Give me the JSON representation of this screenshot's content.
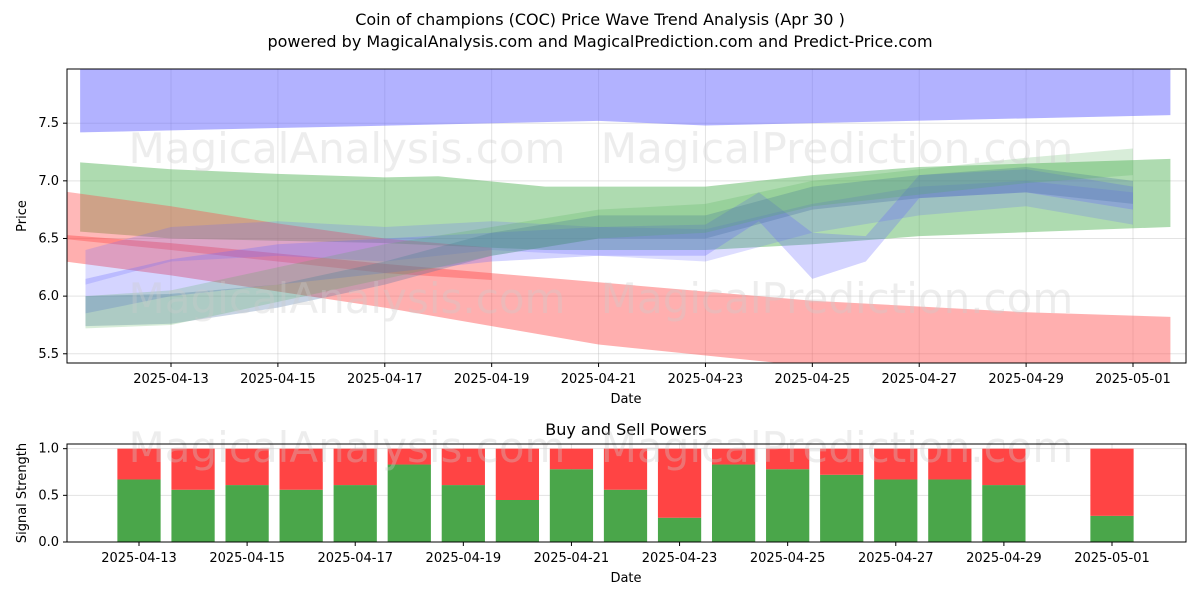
{
  "page": {
    "title": "Coin of champions (COC) Price Wave Trend Analysis (Apr 30 )",
    "subtitle": "powered by MagicalAnalysis.com and MagicalPrediction.com and Predict-Price.com",
    "watermarks": [
      "MagicalAnalysis.com",
      "MagicalPrediction.com"
    ]
  },
  "colors": {
    "blue": "#6666ff",
    "green": "#4caf50",
    "red": "#ff4d4d",
    "buy": "#4aa64a",
    "sell": "#ff4444",
    "steel": "#4a6fa5"
  },
  "chart_data": [
    {
      "type": "area",
      "title": "",
      "xlabel": "Date",
      "ylabel": "Price",
      "ylim": [
        5.42,
        7.97
      ],
      "xlim": [
        "2025-04-10",
        "2025-05-02"
      ],
      "grid": true,
      "x_ticks": [
        "2025-04-13",
        "2025-04-15",
        "2025-04-17",
        "2025-04-19",
        "2025-04-21",
        "2025-04-23",
        "2025-04-25",
        "2025-04-27",
        "2025-04-29",
        "2025-05-01"
      ],
      "y_ticks": [
        5.5,
        6.0,
        6.5,
        7.0,
        7.5
      ],
      "bands": [
        {
          "color": "blue",
          "opacity": 0.5,
          "x": [
            "2025-04-11.3",
            "2025-04-21",
            "2025-04-23",
            "2025-05-01.7"
          ],
          "upper": [
            7.97,
            7.97,
            7.97,
            7.97
          ],
          "lower": [
            7.42,
            7.52,
            7.48,
            7.57
          ]
        },
        {
          "color": "green",
          "opacity": 0.45,
          "x": [
            "2025-04-11.3",
            "2025-04-13",
            "2025-04-15",
            "2025-04-17",
            "2025-04-18",
            "2025-04-20",
            "2025-04-23",
            "2025-04-25",
            "2025-04-27",
            "2025-05-01.7"
          ],
          "upper": [
            7.16,
            7.1,
            7.06,
            7.03,
            7.04,
            6.95,
            6.95,
            7.05,
            7.12,
            7.19
          ],
          "lower": [
            6.56,
            6.5,
            6.48,
            6.46,
            6.44,
            6.4,
            6.4,
            6.45,
            6.52,
            6.6
          ]
        },
        {
          "color": "red",
          "opacity": 0.45,
          "x": [
            "2025-04-10.2",
            "2025-04-13",
            "2025-04-17",
            "2025-04-21",
            "2025-04-25",
            "2025-04-29",
            "2025-05-01.7"
          ],
          "upper": [
            6.56,
            6.46,
            6.28,
            6.12,
            5.96,
            5.86,
            5.82
          ],
          "lower": [
            6.35,
            6.18,
            5.9,
            5.58,
            5.39,
            5.33,
            5.32
          ]
        },
        {
          "color": "red",
          "opacity": 0.4,
          "x": [
            "2025-04-10.5",
            "2025-04-13",
            "2025-04-15",
            "2025-04-17",
            "2025-04-19"
          ],
          "upper": [
            6.94,
            6.78,
            6.63,
            6.5,
            6.42
          ],
          "lower": [
            6.52,
            6.4,
            6.3,
            6.2,
            6.14
          ]
        },
        {
          "color": "blue",
          "opacity": 0.28,
          "x": [
            "2025-04-11.4",
            "2025-04-13",
            "2025-04-15",
            "2025-04-17",
            "2025-04-19",
            "2025-04-21",
            "2025-04-23",
            "2025-04-24",
            "2025-04-25",
            "2025-04-26",
            "2025-04-27",
            "2025-04-29",
            "2025-05-01"
          ],
          "upper": [
            6.15,
            6.32,
            6.45,
            6.5,
            6.55,
            6.6,
            6.62,
            6.9,
            6.55,
            6.52,
            7.05,
            7.1,
            6.95
          ],
          "lower": [
            5.85,
            6.0,
            6.1,
            6.2,
            6.3,
            6.35,
            6.35,
            6.65,
            6.15,
            6.3,
            6.85,
            6.9,
            6.75
          ]
        },
        {
          "color": "blue",
          "opacity": 0.22,
          "x": [
            "2025-04-11.4",
            "2025-04-13",
            "2025-04-15",
            "2025-04-17",
            "2025-04-19",
            "2025-04-21",
            "2025-04-23",
            "2025-04-25",
            "2025-04-27",
            "2025-04-29",
            "2025-05-01"
          ],
          "upper": [
            6.4,
            6.6,
            6.65,
            6.6,
            6.65,
            6.6,
            6.58,
            6.8,
            6.95,
            7.0,
            6.9
          ],
          "lower": [
            6.1,
            6.3,
            6.35,
            6.3,
            6.4,
            6.35,
            6.3,
            6.55,
            6.7,
            6.78,
            6.62
          ]
        },
        {
          "color": "steel",
          "opacity": 0.3,
          "x": [
            "2025-04-11.4",
            "2025-04-13",
            "2025-04-15",
            "2025-04-17",
            "2025-04-19",
            "2025-04-21",
            "2025-04-23",
            "2025-04-25",
            "2025-04-27",
            "2025-04-29",
            "2025-05-01"
          ],
          "upper": [
            6.0,
            6.02,
            6.1,
            6.3,
            6.55,
            6.7,
            6.7,
            6.95,
            7.05,
            7.12,
            7.0
          ],
          "lower": [
            5.74,
            5.76,
            5.9,
            6.1,
            6.35,
            6.5,
            6.5,
            6.75,
            6.85,
            6.9,
            6.8
          ]
        },
        {
          "color": "green",
          "opacity": 0.22,
          "x": [
            "2025-04-11.4",
            "2025-04-13",
            "2025-04-15",
            "2025-04-17",
            "2025-04-19",
            "2025-04-21",
            "2025-04-23",
            "2025-04-25",
            "2025-04-27",
            "2025-04-29",
            "2025-05-01"
          ],
          "upper": [
            6.0,
            6.05,
            6.25,
            6.45,
            6.6,
            6.75,
            6.8,
            7.0,
            7.1,
            7.2,
            7.28
          ],
          "lower": [
            5.72,
            5.75,
            5.95,
            6.15,
            6.35,
            6.5,
            6.55,
            6.78,
            6.88,
            6.98,
            7.05
          ]
        }
      ]
    },
    {
      "type": "bar",
      "title": "Buy and Sell Powers",
      "xlabel": "Date",
      "ylabel": "Signal Strength",
      "ylim": [
        0,
        1.05
      ],
      "grid": true,
      "x_ticks": [
        "2025-04-13",
        "2025-04-15",
        "2025-04-17",
        "2025-04-19",
        "2025-04-21",
        "2025-04-23",
        "2025-04-25",
        "2025-04-27",
        "2025-04-29",
        "2025-05-01"
      ],
      "y_ticks": [
        0.0,
        0.5,
        1.0
      ],
      "categories": [
        "2025-04-13",
        "2025-04-14",
        "2025-04-15",
        "2025-04-16",
        "2025-04-17",
        "2025-04-18",
        "2025-04-19",
        "2025-04-20",
        "2025-04-21",
        "2025-04-22",
        "2025-04-23",
        "2025-04-24",
        "2025-04-25",
        "2025-04-26",
        "2025-04-27",
        "2025-04-28",
        "2025-04-29",
        "2025-05-01"
      ],
      "series": [
        {
          "values": [
            0.67,
            0.56,
            0.61,
            0.56,
            0.61,
            0.83,
            0.61,
            0.45,
            0.78,
            0.56,
            0.26,
            0.83,
            0.78,
            0.72,
            0.67,
            0.67,
            0.61,
            0.28
          ]
        },
        {
          "values": [
            0.33,
            0.44,
            0.39,
            0.44,
            0.39,
            0.17,
            0.39,
            0.55,
            0.22,
            0.44,
            0.74,
            0.17,
            0.22,
            0.28,
            0.33,
            0.33,
            0.39,
            0.72
          ]
        }
      ]
    }
  ]
}
